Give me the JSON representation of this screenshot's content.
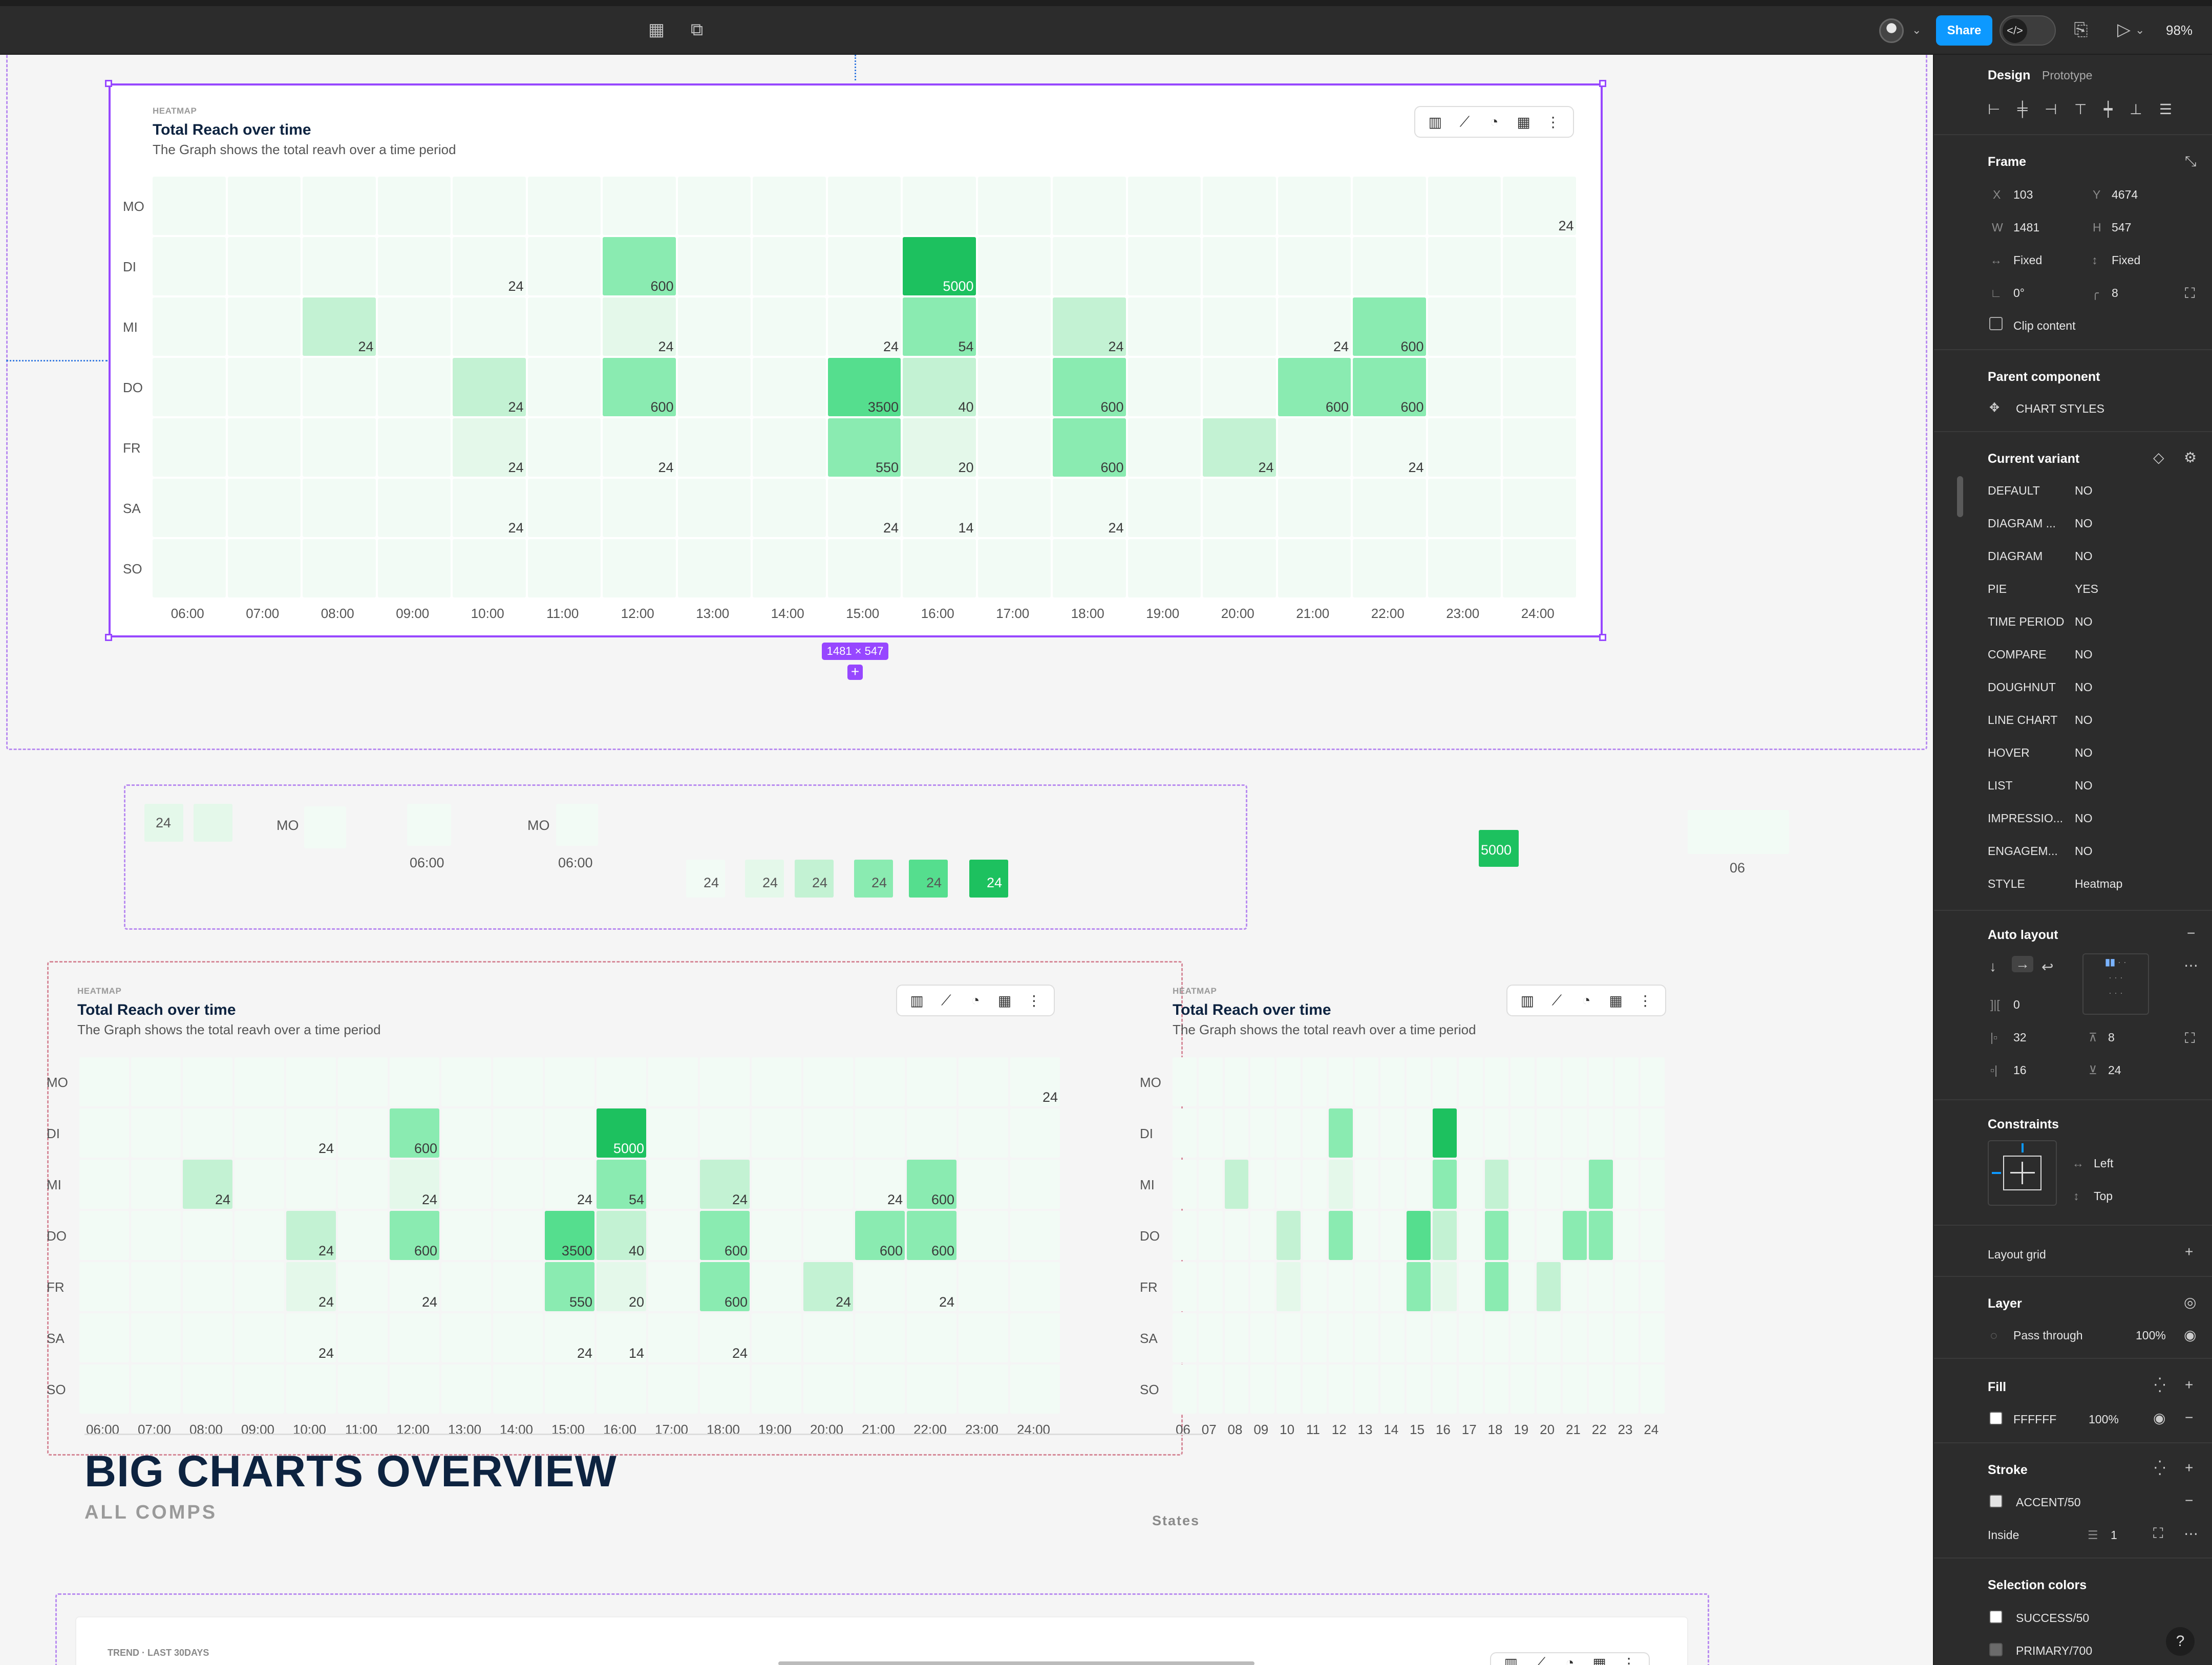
{
  "topbar": {
    "share_label": "Share",
    "zoom_label": "98%",
    "icons": [
      "grid-icon",
      "frame-select-icon",
      "avatar",
      "code-icon",
      "book-icon",
      "play-icon"
    ]
  },
  "colors": {
    "accent": "#9747ff",
    "share_blue": "#0d99ff",
    "heat_levels": [
      "#f2fbf5",
      "#e4f8ea",
      "#c3f2d3",
      "#8aebb1",
      "#55de8e",
      "#1dc15f"
    ]
  },
  "chart_data": [
    {
      "type": "heatmap",
      "tag": "HEATMAP",
      "title": "Total Reach over time",
      "subtitle": "The Graph shows the total reavh over a time period",
      "rows": [
        "MO",
        "DI",
        "MI",
        "DO",
        "FR",
        "SA",
        "SO"
      ],
      "columns": [
        "06:00",
        "07:00",
        "08:00",
        "09:00",
        "10:00",
        "11:00",
        "12:00",
        "13:00",
        "14:00",
        "15:00",
        "16:00",
        "17:00",
        "18:00",
        "19:00",
        "20:00",
        "21:00",
        "22:00",
        "23:00",
        "24:00"
      ],
      "cells": [
        {
          "row": 0,
          "col": 18,
          "value": 24,
          "level": 0
        },
        {
          "row": 1,
          "col": 4,
          "value": 24,
          "level": 0
        },
        {
          "row": 1,
          "col": 6,
          "value": 600,
          "level": 3
        },
        {
          "row": 1,
          "col": 10,
          "value": 5000,
          "level": 5
        },
        {
          "row": 2,
          "col": 2,
          "value": 24,
          "level": 2
        },
        {
          "row": 2,
          "col": 6,
          "value": 24,
          "level": 1
        },
        {
          "row": 2,
          "col": 9,
          "value": 24,
          "level": 0
        },
        {
          "row": 2,
          "col": 10,
          "value": 54,
          "level": 3
        },
        {
          "row": 2,
          "col": 12,
          "value": 24,
          "level": 2
        },
        {
          "row": 2,
          "col": 15,
          "value": 24,
          "level": 0
        },
        {
          "row": 2,
          "col": 16,
          "value": 600,
          "level": 3
        },
        {
          "row": 3,
          "col": 4,
          "value": 24,
          "level": 2
        },
        {
          "row": 3,
          "col": 6,
          "value": 600,
          "level": 3
        },
        {
          "row": 3,
          "col": 9,
          "value": 3500,
          "level": 4
        },
        {
          "row": 3,
          "col": 10,
          "value": 40,
          "level": 2
        },
        {
          "row": 3,
          "col": 12,
          "value": 600,
          "level": 3
        },
        {
          "row": 3,
          "col": 15,
          "value": 600,
          "level": 3
        },
        {
          "row": 3,
          "col": 16,
          "value": 600,
          "level": 3
        },
        {
          "row": 4,
          "col": 4,
          "value": 24,
          "level": 1
        },
        {
          "row": 4,
          "col": 6,
          "value": 24,
          "level": 0
        },
        {
          "row": 4,
          "col": 9,
          "value": 550,
          "level": 3
        },
        {
          "row": 4,
          "col": 10,
          "value": 20,
          "level": 1
        },
        {
          "row": 4,
          "col": 12,
          "value": 600,
          "level": 3
        },
        {
          "row": 4,
          "col": 14,
          "value": 24,
          "level": 2
        },
        {
          "row": 4,
          "col": 16,
          "value": 24,
          "level": 0
        },
        {
          "row": 5,
          "col": 4,
          "value": 24,
          "level": 0
        },
        {
          "row": 5,
          "col": 9,
          "value": 24,
          "level": 0
        },
        {
          "row": 5,
          "col": 10,
          "value": 14,
          "level": 0
        },
        {
          "row": 5,
          "col": 12,
          "value": 24,
          "level": 0
        }
      ],
      "compact_columns": [
        "06",
        "07",
        "08",
        "09",
        "10",
        "11",
        "12",
        "13",
        "14",
        "15",
        "16",
        "17",
        "18",
        "19",
        "20",
        "21",
        "22",
        "23",
        "24"
      ]
    }
  ],
  "selection": {
    "size_label": "1481 × 547"
  },
  "swatches": {
    "cell_value": "24",
    "row_label": "MO",
    "col_label": "06:00",
    "scale_values": [
      "24",
      "24",
      "24",
      "24",
      "24",
      "24"
    ],
    "big_value": "5000",
    "compact_label": "06"
  },
  "overview": {
    "title": "BIG CHARTS OVERVIEW",
    "subtitle": "ALL COMPS",
    "states_label": "States",
    "trend_label": "TREND · LAST 30DAYS"
  },
  "panel": {
    "tabs": [
      "Design",
      "Prototype"
    ],
    "frame": {
      "title": "Frame",
      "x_label": "X",
      "x": "103",
      "y_label": "Y",
      "y": "4674",
      "w_label": "W",
      "w": "1481",
      "h_label": "H",
      "h": "547",
      "w_mode": "Fixed",
      "h_mode": "Fixed",
      "rotation": "0°",
      "radius": "8",
      "clip_label": "Clip content"
    },
    "parent": {
      "title": "Parent component",
      "name": "CHART STYLES"
    },
    "variant": {
      "title": "Current variant",
      "props": [
        {
          "name": "DEFAULT",
          "value": "NO"
        },
        {
          "name": "DIAGRAM ...",
          "value": "NO"
        },
        {
          "name": "DIAGRAM",
          "value": "NO"
        },
        {
          "name": "PIE",
          "value": "YES"
        },
        {
          "name": "TIME PERIOD",
          "value": "NO"
        },
        {
          "name": "COMPARE",
          "value": "NO"
        },
        {
          "name": "DOUGHNUT",
          "value": "NO"
        },
        {
          "name": "LINE CHART",
          "value": "NO"
        },
        {
          "name": "HOVER",
          "value": "NO"
        },
        {
          "name": "LIST",
          "value": "NO"
        },
        {
          "name": "IMPRESSIO...",
          "value": "NO"
        },
        {
          "name": "ENGAGEM...",
          "value": "NO"
        },
        {
          "name": "STYLE",
          "value": "Heatmap"
        }
      ]
    },
    "auto_layout": {
      "title": "Auto layout",
      "gap": "0",
      "pad_left": "32",
      "pad_top": "8",
      "pad_right": "16",
      "pad_bottom": "24"
    },
    "constraints": {
      "title": "Constraints",
      "horizontal": "Left",
      "vertical": "Top"
    },
    "layout_grid": {
      "title": "Layout grid"
    },
    "layer": {
      "title": "Layer",
      "blend": "Pass through",
      "opacity": "100%"
    },
    "fill": {
      "title": "Fill",
      "hex": "FFFFFF",
      "opacity": "100%",
      "swatch": "#ffffff"
    },
    "stroke": {
      "title": "Stroke",
      "name": "ACCENT/50",
      "position": "Inside",
      "weight": "1",
      "swatch": "#e3e3e3"
    },
    "selection_colors": {
      "title": "Selection colors",
      "items": [
        {
          "name": "SUCCESS/50",
          "swatch": "#ffffff"
        },
        {
          "name": "PRIMARY/700",
          "swatch": "#6b6b6b"
        }
      ]
    },
    "help": "?"
  }
}
